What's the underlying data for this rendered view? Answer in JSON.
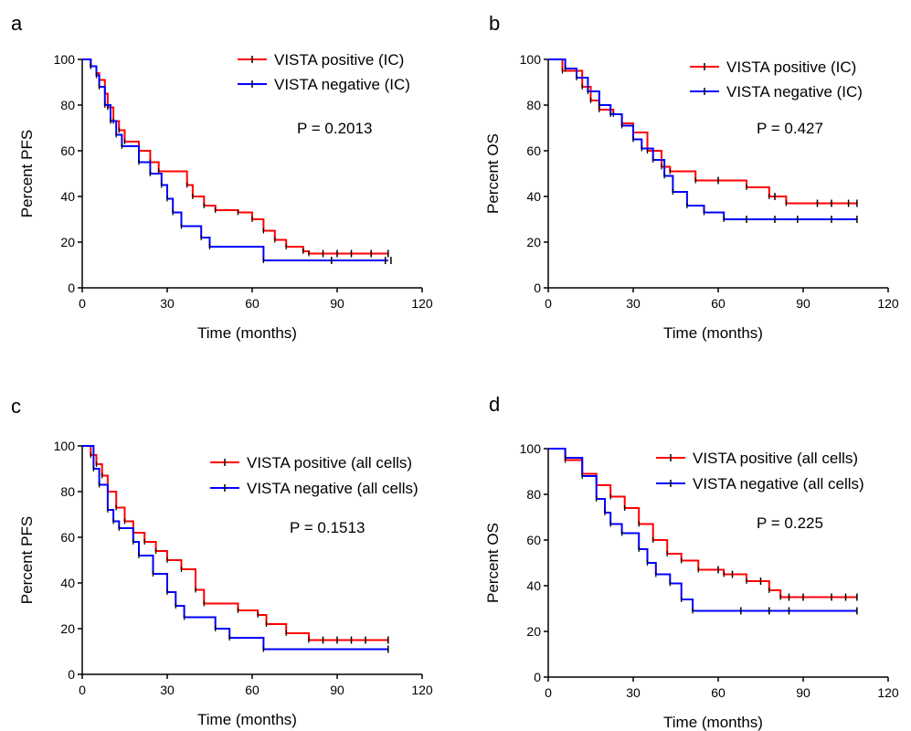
{
  "figure": {
    "panels": [
      {
        "letter": "a",
        "pvalue": "P = 0.2013"
      },
      {
        "letter": "b",
        "pvalue": "P = 0.427"
      },
      {
        "letter": "c",
        "pvalue": "P = 0.1513"
      },
      {
        "letter": "d",
        "pvalue": "P = 0.225"
      }
    ]
  },
  "chart_data": [
    {
      "type": "line",
      "title": "",
      "xlabel": "Time (months)",
      "ylabel": "Percent PFS",
      "xlim": [
        0,
        120
      ],
      "ylim": [
        0,
        100
      ],
      "xticks": [
        0,
        30,
        60,
        90,
        120
      ],
      "yticks": [
        0,
        20,
        40,
        60,
        80,
        100
      ],
      "legend_position": "top-right",
      "annotation": "P = 0.2013",
      "series": [
        {
          "name": "VISTA positive (IC)",
          "color": "#ff0000",
          "x": [
            0,
            3,
            5,
            6,
            8,
            9,
            11,
            13,
            15,
            20,
            24,
            27,
            37,
            39,
            43,
            47,
            55,
            60,
            64,
            68,
            72,
            78,
            80,
            108
          ],
          "y": [
            100,
            97,
            94,
            91,
            85,
            79,
            73,
            69,
            64,
            60,
            55,
            51,
            45,
            40,
            36,
            34,
            33,
            30,
            25,
            21,
            18,
            16,
            15,
            15
          ],
          "censor_x": [
            85,
            90,
            95,
            102,
            108
          ]
        },
        {
          "name": "VISTA negative (IC)",
          "color": "#0000ff",
          "x": [
            0,
            3,
            5,
            6,
            8,
            10,
            12,
            14,
            20,
            24,
            28,
            30,
            32,
            35,
            42,
            45,
            64,
            108
          ],
          "y": [
            100,
            97,
            93,
            88,
            80,
            73,
            67,
            62,
            55,
            50,
            45,
            39,
            33,
            27,
            22,
            18,
            12,
            12
          ],
          "censor_x": [
            88,
            107,
            109
          ]
        }
      ]
    },
    {
      "type": "line",
      "title": "",
      "xlabel": "Time (months)",
      "ylabel": "Percent OS",
      "xlim": [
        0,
        120
      ],
      "ylim": [
        0,
        100
      ],
      "xticks": [
        0,
        30,
        60,
        90,
        120
      ],
      "yticks": [
        0,
        20,
        40,
        60,
        80,
        100
      ],
      "legend_position": "top-right",
      "annotation": "P = 0.427",
      "series": [
        {
          "name": "VISTA positive (IC)",
          "color": "#ff0000",
          "x": [
            0,
            5,
            12,
            15,
            18,
            23,
            26,
            30,
            35,
            40,
            43,
            52,
            70,
            78,
            84,
            109
          ],
          "y": [
            100,
            95,
            88,
            82,
            78,
            76,
            72,
            68,
            60,
            53,
            51,
            47,
            44,
            40,
            37,
            37
          ],
          "censor_x": [
            60,
            80,
            95,
            100,
            106,
            109
          ]
        },
        {
          "name": "VISTA negative (IC)",
          "color": "#0000ff",
          "x": [
            0,
            6,
            10,
            14,
            18,
            22,
            26,
            30,
            33,
            37,
            41,
            44,
            49,
            55,
            62,
            109
          ],
          "y": [
            100,
            96,
            92,
            86,
            80,
            76,
            71,
            65,
            61,
            56,
            49,
            42,
            36,
            33,
            30,
            30
          ],
          "censor_x": [
            70,
            80,
            88,
            100,
            109
          ]
        }
      ]
    },
    {
      "type": "line",
      "title": "",
      "xlabel": "Time (months)",
      "ylabel": "Percent PFS",
      "xlim": [
        0,
        120
      ],
      "ylim": [
        0,
        100
      ],
      "xticks": [
        0,
        30,
        60,
        90,
        120
      ],
      "yticks": [
        0,
        20,
        40,
        60,
        80,
        100
      ],
      "legend_position": "top-right",
      "annotation": "P = 0.1513",
      "series": [
        {
          "name": "VISTA positive (all cells)",
          "color": "#ff0000",
          "x": [
            0,
            3,
            5,
            7,
            9,
            12,
            15,
            18,
            22,
            26,
            30,
            35,
            40,
            43,
            55,
            62,
            65,
            72,
            80,
            108
          ],
          "y": [
            100,
            96,
            92,
            87,
            80,
            73,
            67,
            62,
            58,
            54,
            50,
            46,
            37,
            31,
            28,
            26,
            22,
            18,
            15,
            15
          ],
          "censor_x": [
            85,
            90,
            95,
            100,
            108
          ]
        },
        {
          "name": "VISTA negative (all cells)",
          "color": "#0000ff",
          "x": [
            0,
            4,
            6,
            9,
            11,
            13,
            18,
            20,
            25,
            30,
            33,
            36,
            47,
            52,
            64,
            108
          ],
          "y": [
            100,
            90,
            83,
            72,
            67,
            64,
            58,
            52,
            44,
            36,
            30,
            25,
            20,
            16,
            11,
            11
          ],
          "censor_x": [
            108
          ]
        }
      ]
    },
    {
      "type": "line",
      "title": "",
      "xlabel": "Time (months)",
      "ylabel": "Percent OS",
      "xlim": [
        0,
        120
      ],
      "ylim": [
        0,
        100
      ],
      "xticks": [
        0,
        30,
        60,
        90,
        120
      ],
      "yticks": [
        0,
        20,
        40,
        60,
        80,
        100
      ],
      "legend_position": "top-right",
      "annotation": "P = 0.225",
      "series": [
        {
          "name": "VISTA positive (all cells)",
          "color": "#ff0000",
          "x": [
            0,
            6,
            12,
            17,
            22,
            27,
            32,
            37,
            42,
            47,
            53,
            62,
            70,
            78,
            82,
            109
          ],
          "y": [
            100,
            95,
            89,
            84,
            79,
            74,
            67,
            60,
            54,
            51,
            47,
            45,
            42,
            38,
            35,
            35
          ],
          "censor_x": [
            60,
            65,
            75,
            85,
            90,
            100,
            105,
            109
          ]
        },
        {
          "name": "VISTA negative (all cells)",
          "color": "#0000ff",
          "x": [
            0,
            6,
            12,
            17,
            20,
            22,
            26,
            32,
            35,
            38,
            43,
            47,
            51,
            109
          ],
          "y": [
            100,
            96,
            88,
            78,
            72,
            67,
            63,
            56,
            50,
            45,
            41,
            34,
            29,
            29
          ],
          "censor_x": [
            68,
            78,
            85,
            109
          ]
        }
      ]
    }
  ]
}
